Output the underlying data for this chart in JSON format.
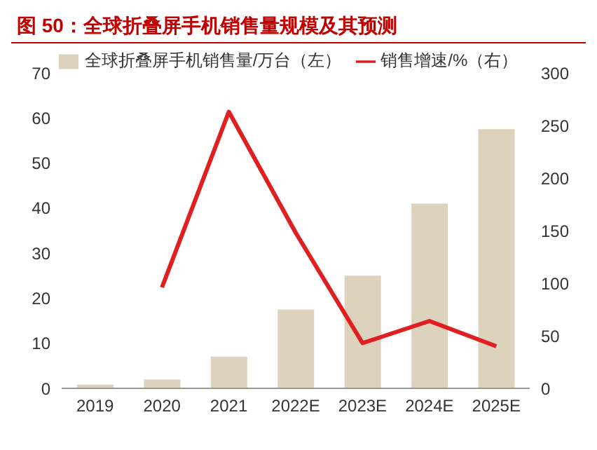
{
  "chart_data": {
    "type": "bar",
    "title": "图 50：全球折叠屏手机销售量规模及其预测",
    "categories": [
      "2019",
      "2020",
      "2021",
      "2022E",
      "2023E",
      "2024E",
      "2025E"
    ],
    "series": [
      {
        "name": "全球折叠屏手机销售量/万台（左）",
        "color": "#ddd3bd",
        "values": [
          0.8,
          2,
          7,
          17.5,
          25,
          41,
          57.5
        ]
      },
      {
        "name": "销售增速/%（右）",
        "type": "line",
        "axis": "y2",
        "color": "#e02020",
        "values": [
          null,
          96,
          263,
          148,
          43,
          64,
          40
        ]
      }
    ],
    "ylim": [
      0,
      70
    ],
    "yticks": [
      0,
      10,
      20,
      30,
      40,
      50,
      60,
      70
    ],
    "y2lim": [
      0,
      300
    ],
    "y2ticks": [
      0,
      50,
      100,
      150,
      200,
      250,
      300
    ],
    "grid": false,
    "legend": "top",
    "marker": "none",
    "line_style": "solid"
  }
}
